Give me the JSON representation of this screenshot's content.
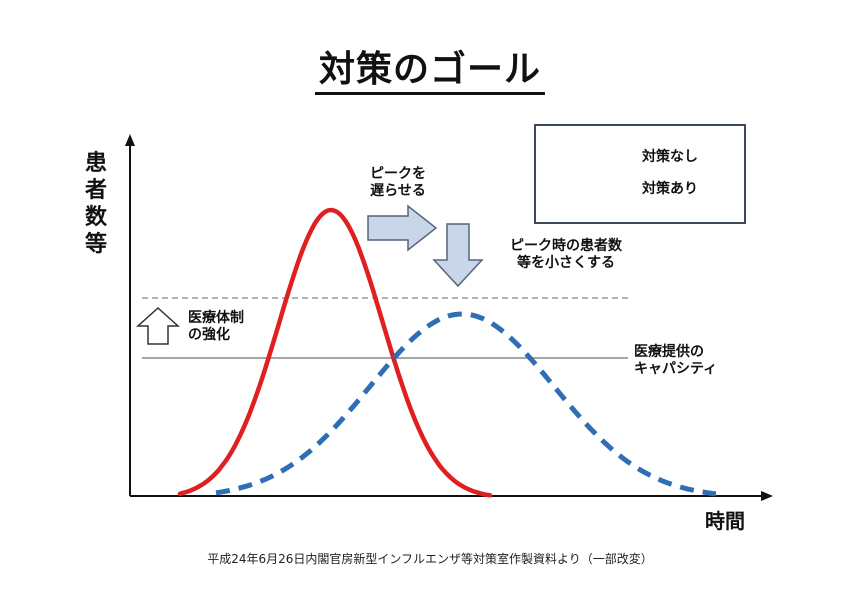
{
  "title": "対策のゴール",
  "y_axis_label": "患者数等",
  "x_axis_label": "時間",
  "legend": {
    "items": [
      {
        "label": "対策なし",
        "color": "#e02020",
        "style": "solid"
      },
      {
        "label": "対策あり",
        "color": "#2f6db5",
        "style": "dashed"
      }
    ]
  },
  "annotations": {
    "delay_peak_line1": "ピークを",
    "delay_peak_line2": "遅らせる",
    "reduce_peak_line1": "ピーク時の患者数",
    "reduce_peak_line2": "等を小さくする",
    "strengthen_line1": "医療体制",
    "strengthen_line2": "の強化",
    "capacity_line1": "医療提供の",
    "capacity_line2": "キャパシティ"
  },
  "source_note": "平成24年6月26日内閣官房新型インフルエンザ等対策室作製資料より（一部改変）",
  "colors": {
    "no_measures": "#e02020",
    "with_measures": "#2f6db5",
    "arrow_fill": "#c9d6ea",
    "arrow_stroke": "#56657a",
    "threshold_line": "#888888"
  }
}
